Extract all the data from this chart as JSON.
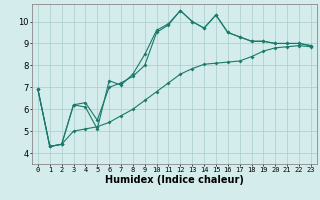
{
  "xlabel": "Humidex (Indice chaleur)",
  "background_color": "#d4ecec",
  "grid_color": "#aacccc",
  "line_color": "#1a7a6a",
  "x_values": [
    0,
    1,
    2,
    3,
    4,
    5,
    6,
    7,
    8,
    9,
    10,
    11,
    12,
    13,
    14,
    15,
    16,
    17,
    18,
    19,
    20,
    21,
    22,
    23
  ],
  "line1": [
    6.9,
    4.3,
    4.4,
    6.2,
    6.1,
    5.1,
    7.3,
    7.1,
    7.6,
    8.5,
    9.6,
    9.9,
    10.5,
    10.0,
    9.7,
    10.3,
    9.5,
    9.3,
    9.1,
    9.1,
    9.0,
    9.0,
    9.0,
    8.9
  ],
  "line2": [
    6.9,
    4.3,
    4.4,
    6.2,
    6.3,
    5.5,
    7.0,
    7.2,
    7.5,
    8.0,
    9.5,
    9.85,
    10.5,
    10.0,
    9.7,
    10.3,
    9.5,
    9.3,
    9.1,
    9.1,
    9.0,
    9.0,
    9.0,
    8.9
  ],
  "line3": [
    6.9,
    4.3,
    4.4,
    5.0,
    5.1,
    5.2,
    5.4,
    5.7,
    6.0,
    6.4,
    6.8,
    7.2,
    7.6,
    7.85,
    8.05,
    8.1,
    8.15,
    8.2,
    8.4,
    8.65,
    8.8,
    8.85,
    8.9,
    8.85
  ],
  "xlim": [
    -0.5,
    23.5
  ],
  "ylim": [
    3.5,
    10.8
  ],
  "yticks": [
    4,
    5,
    6,
    7,
    8,
    9,
    10
  ],
  "xticks": [
    0,
    1,
    2,
    3,
    4,
    5,
    6,
    7,
    8,
    9,
    10,
    11,
    12,
    13,
    14,
    15,
    16,
    17,
    18,
    19,
    20,
    21,
    22,
    23
  ],
  "xlabel_fontsize": 7,
  "tick_fontsize": 5,
  "lw": 0.8,
  "ms": 2.0
}
